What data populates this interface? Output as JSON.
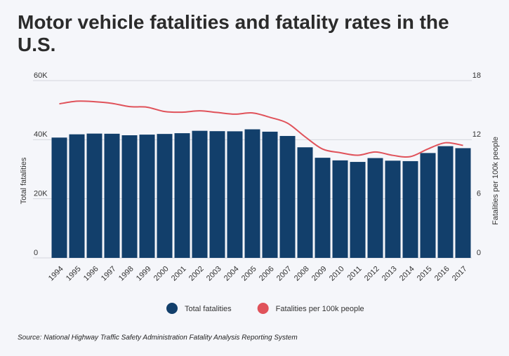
{
  "chart_data": {
    "type": "bar_line",
    "title": "Motor vehicle fatalities and fatality rates in the U.S.",
    "source": "Source: National Highway Traffic Safety Administration Fatality Analysis Reporting System",
    "ylabel": "Total fatalities",
    "y2label": "Fatalities per 100k people",
    "categories": [
      "1994",
      "1995",
      "1996",
      "1997",
      "1998",
      "1999",
      "2000",
      "2001",
      "2002",
      "2003",
      "2004",
      "2005",
      "2006",
      "2007",
      "2008",
      "2009",
      "2010",
      "2011",
      "2012",
      "2013",
      "2014",
      "2015",
      "2016",
      "2017"
    ],
    "series": [
      {
        "name": "Total fatalities",
        "type": "bar",
        "color": "#123f6b",
        "values": [
          40716,
          41817,
          42065,
          42013,
          41501,
          41717,
          41945,
          42196,
          43005,
          42884,
          42836,
          43510,
          42708,
          41259,
          37423,
          33883,
          32999,
          32479,
          33782,
          32893,
          32744,
          35484,
          37806,
          37133
        ]
      },
      {
        "name": "Fatalities per 100k people",
        "type": "line",
        "axis": "y2",
        "color": "#e0525a",
        "values": [
          15.64,
          15.91,
          15.86,
          15.69,
          15.36,
          15.3,
          14.86,
          14.79,
          14.93,
          14.76,
          14.59,
          14.72,
          14.27,
          13.68,
          12.3,
          11.05,
          10.68,
          10.42,
          10.75,
          10.41,
          10.28,
          11.06,
          11.69,
          11.42
        ]
      }
    ],
    "ylim": [
      0,
      60000
    ],
    "yticks": [
      0,
      {
        "value": 20000,
        "label": "20K"
      },
      {
        "value": 40000,
        "label": "40K"
      },
      {
        "value": 60000,
        "label": "60K"
      }
    ],
    "y2lim": [
      0,
      18
    ],
    "y2ticks": [
      0,
      6,
      12,
      18
    ],
    "grid": true
  }
}
